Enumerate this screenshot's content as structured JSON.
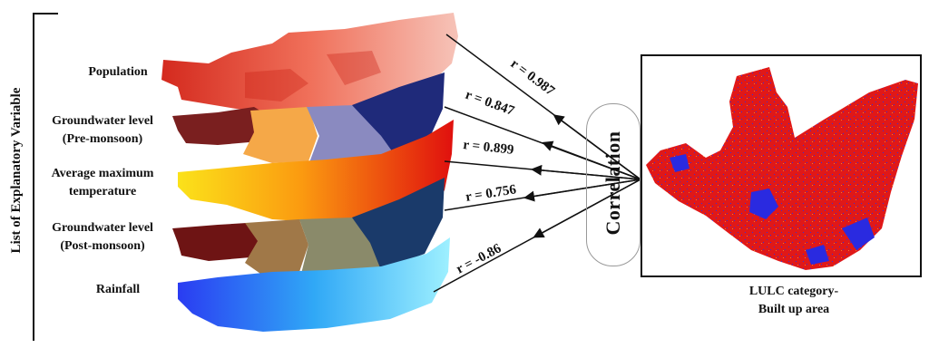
{
  "vertical_title": "List of Explanatory Variable",
  "variables": [
    {
      "id": "population",
      "lines": [
        "Population"
      ],
      "r": "r = 0.987"
    },
    {
      "id": "gw-pre",
      "lines": [
        "Groundwater level",
        "(Pre-monsoon)"
      ],
      "r": "r = 0.847"
    },
    {
      "id": "temperature",
      "lines": [
        "Average maximum",
        "temperature"
      ],
      "r": "r = 0.899"
    },
    {
      "id": "gw-post",
      "lines": [
        "Groundwater level",
        "(Post-monsoon)"
      ],
      "r": "r = 0.756"
    },
    {
      "id": "rainfall",
      "lines": [
        "Rainfall"
      ],
      "r": "r = -0.86"
    }
  ],
  "correlation_label": "Correlation",
  "map_caption": [
    "LULC category-",
    "Built up area"
  ],
  "colors": {
    "population": "#e8453a",
    "gw_dark": "#7a1f1f",
    "gw_mid": "#8a8ac0",
    "gw_navy": "#1f2a7a",
    "temperature": "#f7c21a",
    "rainfall": "#3a5cf0",
    "map_red": "#e01818",
    "map_blue": "#2a2ae0"
  },
  "map_legend": []
}
